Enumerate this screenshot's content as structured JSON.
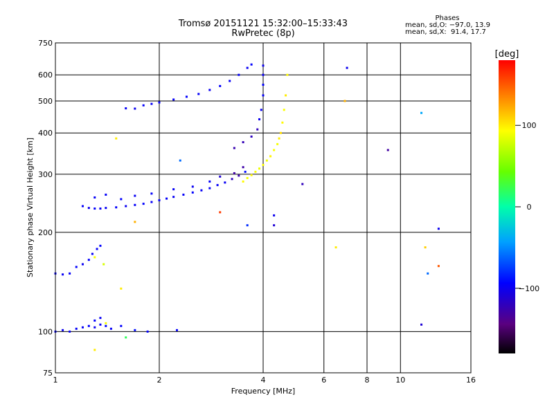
{
  "title_line1": "Tromsø 20151121 15:32:00–15:33:43",
  "title_line2": "RwPretec (8p)",
  "phases": {
    "header": "Phases",
    "line_o": "mean, sd,O: −97.0, 13.9",
    "line_x": "mean, sd,X:  91.4, 17.7"
  },
  "colorbar": {
    "unit_label": "[deg]",
    "range": [
      -180,
      180
    ],
    "ticks": [
      {
        "value": 100,
        "label": "100"
      },
      {
        "value": 0,
        "label": "0"
      },
      {
        "value": -100,
        "label": "−100"
      }
    ]
  },
  "chart_data": {
    "type": "scatter",
    "xlabel": "Frequency [MHz]",
    "ylabel": "Stationary phase Virtual Height [km]",
    "x_scale": "log",
    "y_scale": "log",
    "xlim": [
      1,
      16
    ],
    "ylim": [
      75,
      750
    ],
    "x_ticks": [
      {
        "value": 1,
        "label": "1"
      },
      {
        "value": 2,
        "label": "2"
      },
      {
        "value": 4,
        "label": "4"
      },
      {
        "value": 6,
        "label": "6"
      },
      {
        "value": 8,
        "label": "8"
      },
      {
        "value": 10,
        "label": "10"
      },
      {
        "value": 16,
        "label": "16"
      }
    ],
    "y_ticks": [
      {
        "value": 75,
        "label": "75"
      },
      {
        "value": 100,
        "label": "100"
      },
      {
        "value": 200,
        "label": "200"
      },
      {
        "value": 300,
        "label": "300"
      },
      {
        "value": 400,
        "label": "400"
      },
      {
        "value": 500,
        "label": "500"
      },
      {
        "value": 600,
        "label": "600"
      },
      {
        "value": 750,
        "label": "750"
      }
    ],
    "x_grid": [
      2,
      4,
      6,
      8,
      10
    ],
    "y_grid": [
      100,
      200,
      300,
      400,
      500,
      600
    ],
    "points": [
      [
        1.0,
        100,
        -95
      ],
      [
        1.05,
        101,
        -100
      ],
      [
        1.1,
        100,
        -98
      ],
      [
        1.15,
        102,
        -96
      ],
      [
        1.2,
        103,
        -97
      ],
      [
        1.25,
        104,
        -94
      ],
      [
        1.3,
        103,
        -99
      ],
      [
        1.35,
        105,
        -95
      ],
      [
        1.4,
        104,
        -92
      ],
      [
        1.45,
        102,
        -97
      ],
      [
        1.55,
        104,
        -94
      ],
      [
        1.7,
        101,
        -90
      ],
      [
        1.85,
        100,
        -95
      ],
      [
        2.25,
        101,
        -96
      ],
      [
        1.3,
        108,
        -95
      ],
      [
        1.35,
        110,
        -98
      ],
      [
        1.4,
        106,
        90
      ],
      [
        1.0,
        150,
        -95
      ],
      [
        1.05,
        149,
        -98
      ],
      [
        1.1,
        150,
        -96
      ],
      [
        1.15,
        157,
        -94
      ],
      [
        1.2,
        160,
        -99
      ],
      [
        1.25,
        165,
        -95
      ],
      [
        1.28,
        172,
        -97
      ],
      [
        1.32,
        178,
        -96
      ],
      [
        1.35,
        182,
        -93
      ],
      [
        1.3,
        168,
        92
      ],
      [
        1.38,
        160,
        80
      ],
      [
        1.2,
        240,
        -96
      ],
      [
        1.25,
        237,
        -100
      ],
      [
        1.3,
        236,
        -95
      ],
      [
        1.35,
        236,
        -98
      ],
      [
        1.4,
        237,
        -97
      ],
      [
        1.5,
        238,
        -95
      ],
      [
        1.6,
        240,
        -99
      ],
      [
        1.7,
        242,
        -96
      ],
      [
        1.8,
        244,
        -94
      ],
      [
        1.9,
        247,
        -97
      ],
      [
        2.0,
        250,
        -96
      ],
      [
        2.1,
        253,
        -95
      ],
      [
        2.2,
        256,
        -98
      ],
      [
        2.35,
        260,
        -96
      ],
      [
        2.5,
        264,
        -94
      ],
      [
        2.65,
        268,
        -97
      ],
      [
        2.8,
        272,
        -95
      ],
      [
        2.95,
        278,
        -96
      ],
      [
        3.1,
        283,
        -98
      ],
      [
        3.25,
        290,
        -120
      ],
      [
        3.4,
        297,
        -125
      ],
      [
        3.55,
        305,
        -90
      ],
      [
        1.3,
        255,
        -97
      ],
      [
        1.4,
        260,
        -96
      ],
      [
        1.55,
        252,
        -94
      ],
      [
        1.7,
        258,
        -98
      ],
      [
        1.9,
        262,
        -95
      ],
      [
        2.2,
        270,
        -97
      ],
      [
        2.5,
        275,
        -99
      ],
      [
        2.8,
        285,
        -96
      ],
      [
        3.0,
        295,
        -110
      ],
      [
        3.3,
        302,
        -130
      ],
      [
        3.5,
        315,
        -128
      ],
      [
        3.5,
        285,
        95
      ],
      [
        3.6,
        292,
        90
      ],
      [
        3.7,
        298,
        96
      ],
      [
        3.8,
        305,
        92
      ],
      [
        3.9,
        312,
        88
      ],
      [
        4.0,
        320,
        94
      ],
      [
        4.1,
        330,
        90
      ],
      [
        4.2,
        340,
        97
      ],
      [
        4.3,
        355,
        92
      ],
      [
        4.4,
        370,
        90
      ],
      [
        4.45,
        385,
        100
      ],
      [
        4.5,
        400,
        105
      ],
      [
        4.55,
        430,
        95
      ],
      [
        4.6,
        470,
        92
      ],
      [
        4.65,
        520,
        100
      ],
      [
        4.7,
        600,
        95
      ],
      [
        3.3,
        360,
        -125
      ],
      [
        3.5,
        375,
        -122
      ],
      [
        3.7,
        390,
        -118
      ],
      [
        3.85,
        410,
        -120
      ],
      [
        3.9,
        440,
        -100
      ],
      [
        3.95,
        470,
        -98
      ],
      [
        4.0,
        520,
        -96
      ],
      [
        4.0,
        560,
        -94
      ],
      [
        4.0,
        600,
        -98
      ],
      [
        4.0,
        640,
        -100
      ],
      [
        1.6,
        475,
        -97
      ],
      [
        1.7,
        474,
        -100
      ],
      [
        1.8,
        485,
        -95
      ],
      [
        1.9,
        490,
        -98
      ],
      [
        2.0,
        495,
        -96
      ],
      [
        2.2,
        505,
        -97
      ],
      [
        2.4,
        515,
        -94
      ],
      [
        2.6,
        525,
        -96
      ],
      [
        2.8,
        540,
        -99
      ],
      [
        3.0,
        555,
        -95
      ],
      [
        3.2,
        575,
        -97
      ],
      [
        3.4,
        600,
        -96
      ],
      [
        3.6,
        630,
        -98
      ],
      [
        3.7,
        645,
        -94
      ],
      [
        5.2,
        280,
        -120
      ],
      [
        6.5,
        180,
        100
      ],
      [
        6.9,
        500,
        120
      ],
      [
        7.0,
        630,
        -100
      ],
      [
        9.2,
        355,
        -130
      ],
      [
        11.5,
        460,
        -40
      ],
      [
        12.0,
        150,
        -60
      ],
      [
        11.5,
        105,
        -110
      ],
      [
        11.8,
        180,
        110
      ],
      [
        12.9,
        205,
        -100
      ],
      [
        12.9,
        158,
        150
      ],
      [
        4.3,
        225,
        -100
      ],
      [
        3.6,
        210,
        -80
      ],
      [
        4.3,
        210,
        -110
      ],
      [
        3.0,
        230,
        160
      ],
      [
        2.3,
        330,
        -60
      ],
      [
        1.5,
        385,
        100
      ],
      [
        1.7,
        215,
        120
      ],
      [
        1.55,
        135,
        100
      ],
      [
        1.6,
        96,
        20
      ],
      [
        1.3,
        88,
        100
      ]
    ]
  }
}
